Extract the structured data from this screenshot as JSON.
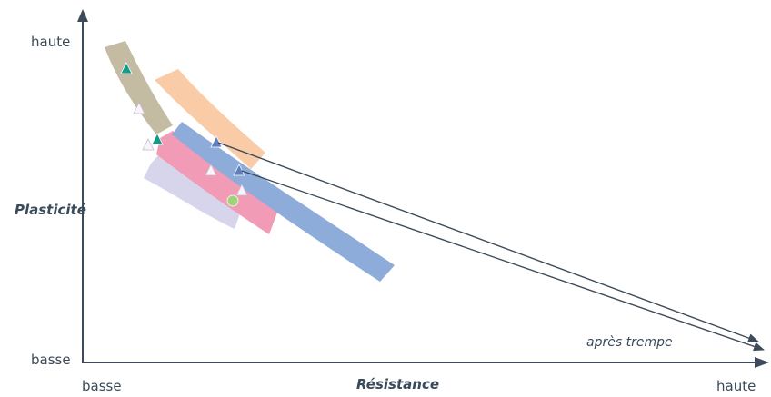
{
  "chart_data": {
    "type": "diagram",
    "y_axis": {
      "label": "Plasticité",
      "high_label": "haute",
      "low_label": "basse"
    },
    "x_axis": {
      "label": "Résistance",
      "low_label": "basse",
      "high_label": "haute"
    },
    "annotation": "après trempe",
    "colors": {
      "axis": "#3d4b5a",
      "band_tan": "#c4bba3",
      "band_peach": "#f9cba7",
      "band_pink": "#f29bb6",
      "band_lavender": "#d7d5eb",
      "band_blue": "#8eacd9",
      "marker_teal": "#139b8a",
      "marker_white": "#f7f4fb",
      "marker_blue": "#5f7fbf",
      "marker_green": "#9fd37a"
    }
  }
}
